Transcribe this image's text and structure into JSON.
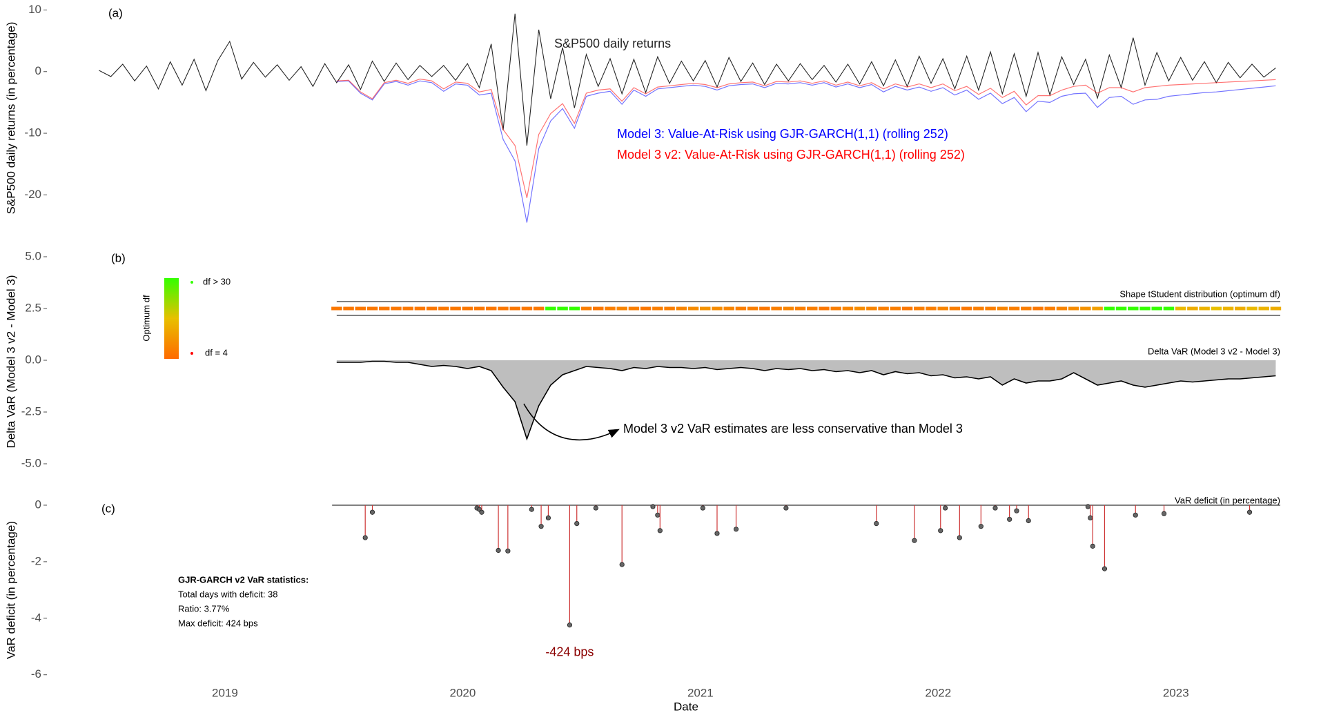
{
  "chart_data": [
    {
      "type": "line",
      "panel_label": "(a)",
      "ylabel": "S&P500 daily returns (in percentage)",
      "xlim": [
        2018.45,
        2023.5
      ],
      "ylim": [
        -25,
        10.5
      ],
      "yticks": [
        -20,
        -10,
        0,
        10
      ],
      "x": [
        2018.47,
        2018.52,
        2018.57,
        2018.62,
        2018.67,
        2018.72,
        2018.77,
        2018.82,
        2018.87,
        2018.92,
        2018.97,
        2019.02,
        2019.07,
        2019.12,
        2019.17,
        2019.22,
        2019.27,
        2019.32,
        2019.37,
        2019.42,
        2019.47,
        2019.52,
        2019.57,
        2019.62,
        2019.67,
        2019.72,
        2019.77,
        2019.82,
        2019.87,
        2019.92,
        2019.97,
        2020.02,
        2020.07,
        2020.12,
        2020.17,
        2020.22,
        2020.27,
        2020.32,
        2020.37,
        2020.42,
        2020.47,
        2020.52,
        2020.57,
        2020.62,
        2020.67,
        2020.72,
        2020.77,
        2020.82,
        2020.87,
        2020.92,
        2020.97,
        2021.02,
        2021.07,
        2021.12,
        2021.17,
        2021.22,
        2021.27,
        2021.32,
        2021.37,
        2021.42,
        2021.47,
        2021.52,
        2021.57,
        2021.62,
        2021.67,
        2021.72,
        2021.77,
        2021.82,
        2021.87,
        2021.92,
        2021.97,
        2022.02,
        2022.07,
        2022.12,
        2022.17,
        2022.22,
        2022.27,
        2022.32,
        2022.37,
        2022.42,
        2022.47,
        2022.52,
        2022.57,
        2022.62,
        2022.67,
        2022.72,
        2022.77,
        2022.82,
        2022.87,
        2022.92,
        2022.97,
        2023.02,
        2023.07,
        2023.12,
        2023.17,
        2023.22,
        2023.27,
        2023.32,
        2023.37,
        2023.42
      ],
      "series": [
        {
          "name": "S&P500 daily returns",
          "color": "#262626",
          "values": [
            0.2,
            -0.8,
            1.2,
            -1.5,
            0.9,
            -2.8,
            1.6,
            -2.2,
            2.0,
            -3.1,
            1.8,
            4.9,
            -1.2,
            1.5,
            -0.9,
            1.1,
            -1.4,
            0.8,
            -2.4,
            1.3,
            -1.8,
            1.1,
            -2.9,
            1.7,
            -1.6,
            1.4,
            -1.3,
            1.0,
            -0.8,
            1.0,
            -1.4,
            1.3,
            -2.6,
            4.5,
            -9.5,
            9.4,
            -12.0,
            6.8,
            -4.4,
            3.9,
            -5.9,
            2.8,
            -2.4,
            2.1,
            -3.6,
            2.0,
            -3.4,
            2.4,
            -1.9,
            1.7,
            -1.5,
            1.8,
            -2.5,
            2.3,
            -1.6,
            1.4,
            -2.1,
            1.2,
            -1.5,
            1.3,
            -1.3,
            1.0,
            -1.7,
            1.2,
            -2.0,
            1.6,
            -2.3,
            1.9,
            -2.4,
            2.5,
            -1.9,
            2.1,
            -2.8,
            2.5,
            -3.0,
            3.2,
            -3.6,
            2.9,
            -4.0,
            3.1,
            -3.8,
            2.4,
            -2.1,
            2.0,
            -4.3,
            2.7,
            -2.6,
            5.5,
            -2.2,
            3.1,
            -1.5,
            2.3,
            -1.4,
            1.6,
            -1.8,
            1.5,
            -1.0,
            1.2,
            -0.9,
            0.6
          ]
        },
        {
          "name": "Model 3: Value-At-Risk using GJR-GARCH(1,1) (rolling 252)",
          "color": "#0000ff",
          "values": [
            null,
            null,
            null,
            null,
            null,
            null,
            null,
            null,
            null,
            null,
            null,
            null,
            null,
            null,
            null,
            null,
            null,
            null,
            null,
            null,
            -1.6,
            -1.5,
            -3.5,
            -4.6,
            -2.0,
            -1.6,
            -2.2,
            -1.5,
            -1.8,
            -3.2,
            -2.0,
            -2.2,
            -3.8,
            -3.5,
            -11.0,
            -14.5,
            -24.5,
            -12.5,
            -8.0,
            -6.0,
            -9.2,
            -4.0,
            -3.5,
            -3.2,
            -5.3,
            -3.0,
            -4.0,
            -2.8,
            -2.6,
            -2.4,
            -2.2,
            -2.4,
            -3.0,
            -2.3,
            -2.1,
            -2.0,
            -2.6,
            -1.9,
            -2.0,
            -1.8,
            -2.2,
            -1.8,
            -2.5,
            -2.0,
            -2.6,
            -2.1,
            -3.3,
            -2.4,
            -3.0,
            -2.5,
            -3.2,
            -2.6,
            -3.8,
            -3.0,
            -4.5,
            -3.5,
            -5.2,
            -4.2,
            -6.5,
            -4.8,
            -5.0,
            -4.0,
            -3.6,
            -3.5,
            -5.8,
            -4.2,
            -4.0,
            -5.3,
            -4.6,
            -4.5,
            -4.0,
            -3.8,
            -3.6,
            -3.4,
            -3.3,
            -3.1,
            -2.9,
            -2.7,
            -2.5,
            -2.3
          ]
        },
        {
          "name": "Model 3 v2: Value-At-Risk using GJR-GARCH(1,1) (rolling 252)",
          "color": "#ff0000",
          "values": [
            null,
            null,
            null,
            null,
            null,
            null,
            null,
            null,
            null,
            null,
            null,
            null,
            null,
            null,
            null,
            null,
            null,
            null,
            null,
            null,
            -1.5,
            -1.4,
            -3.3,
            -4.4,
            -1.8,
            -1.4,
            -1.9,
            -1.2,
            -1.5,
            -2.8,
            -1.7,
            -1.9,
            -3.3,
            -2.9,
            -9.4,
            -12.0,
            -20.5,
            -10.2,
            -6.8,
            -5.2,
            -8.4,
            -3.5,
            -3.0,
            -2.8,
            -4.8,
            -2.6,
            -3.6,
            -2.5,
            -2.3,
            -2.1,
            -1.9,
            -2.1,
            -2.6,
            -2.0,
            -1.8,
            -1.7,
            -2.3,
            -1.6,
            -1.7,
            -1.5,
            -1.9,
            -1.5,
            -2.2,
            -1.7,
            -2.3,
            -1.8,
            -2.8,
            -2.0,
            -2.5,
            -2.0,
            -2.6,
            -2.0,
            -3.1,
            -2.4,
            -3.7,
            -2.7,
            -4.2,
            -3.2,
            -5.4,
            -3.9,
            -3.9,
            -3.0,
            -2.4,
            -2.2,
            -3.5,
            -2.6,
            -2.6,
            -3.3,
            -2.6,
            -2.4,
            -2.2,
            -2.1,
            -2.0,
            -1.9,
            -1.8,
            -1.7,
            -1.6,
            -1.5,
            -1.4,
            -1.3
          ]
        }
      ]
    },
    {
      "type": "area",
      "panel_label": "(b)",
      "ylabel": "Delta VaR (Model 3 v2 - Model 3)",
      "title": "Delta VaR (Model 3 v2 - Model 3)",
      "xlim": [
        2018.45,
        2023.5
      ],
      "ylim": [
        -5.5,
        5.5
      ],
      "yticks": [
        {
          "value": -5,
          "label": "-5.0"
        },
        -2.5,
        {
          "value": 0,
          "label": "0.0"
        },
        2.5,
        {
          "value": 5,
          "label": "5.0"
        }
      ],
      "color": "#bebebe",
      "line_color": "#000000",
      "annotation": "Model 3 v2 VaR estimates are less conservative than Model 3",
      "x": [
        2019.47,
        2019.52,
        2019.57,
        2019.62,
        2019.67,
        2019.72,
        2019.77,
        2019.82,
        2019.87,
        2019.92,
        2019.97,
        2020.02,
        2020.07,
        2020.12,
        2020.17,
        2020.22,
        2020.27,
        2020.32,
        2020.37,
        2020.42,
        2020.47,
        2020.52,
        2020.57,
        2020.62,
        2020.67,
        2020.72,
        2020.77,
        2020.82,
        2020.87,
        2020.92,
        2020.97,
        2021.02,
        2021.07,
        2021.12,
        2021.17,
        2021.22,
        2021.27,
        2021.32,
        2021.37,
        2021.42,
        2021.47,
        2021.52,
        2021.57,
        2021.62,
        2021.67,
        2021.72,
        2021.77,
        2021.82,
        2021.87,
        2021.92,
        2021.97,
        2022.02,
        2022.07,
        2022.12,
        2022.17,
        2022.22,
        2022.27,
        2022.32,
        2022.37,
        2022.42,
        2022.47,
        2022.52,
        2022.57,
        2022.62,
        2022.67,
        2022.72,
        2022.77,
        2022.82,
        2022.87,
        2022.92,
        2022.97,
        2023.02,
        2023.07,
        2023.12,
        2023.17,
        2023.22,
        2023.27,
        2023.32,
        2023.37,
        2023.42
      ],
      "values": [
        -0.1,
        -0.1,
        -0.1,
        -0.05,
        -0.05,
        -0.1,
        -0.1,
        -0.2,
        -0.3,
        -0.25,
        -0.3,
        -0.4,
        -0.3,
        -0.5,
        -1.3,
        -2.0,
        -3.8,
        -2.2,
        -1.2,
        -0.7,
        -0.5,
        -0.3,
        -0.35,
        -0.4,
        -0.5,
        -0.35,
        -0.4,
        -0.3,
        -0.35,
        -0.35,
        -0.4,
        -0.35,
        -0.45,
        -0.4,
        -0.35,
        -0.4,
        -0.5,
        -0.4,
        -0.45,
        -0.4,
        -0.5,
        -0.45,
        -0.55,
        -0.5,
        -0.6,
        -0.5,
        -0.7,
        -0.55,
        -0.65,
        -0.6,
        -0.75,
        -0.7,
        -0.85,
        -0.8,
        -0.9,
        -0.8,
        -1.2,
        -0.9,
        -1.1,
        -1.0,
        -1.0,
        -0.9,
        -0.6,
        -0.9,
        -1.2,
        -1.1,
        -1.0,
        -1.2,
        -1.3,
        -1.2,
        -1.1,
        -1.0,
        -1.05,
        -1.0,
        -0.95,
        -0.9,
        -0.9,
        -0.85,
        -0.8,
        -0.75
      ],
      "strip": {
        "title": "Shape tStudent distribution (optimum df)",
        "values": [
          6,
          6,
          6,
          6,
          6,
          6,
          6,
          6,
          6,
          6,
          6,
          6,
          6,
          6,
          6,
          6,
          6,
          6,
          30,
          30,
          30,
          7,
          6,
          7,
          8,
          7,
          6,
          7,
          7,
          8,
          9,
          10,
          9,
          8,
          7,
          7,
          6,
          7,
          8,
          7,
          7,
          6,
          7,
          8,
          9,
          8,
          7,
          7,
          6,
          7,
          7,
          8,
          7,
          6,
          7,
          7,
          8,
          7,
          7,
          6,
          7,
          8,
          9,
          10,
          12,
          30,
          30,
          30,
          30,
          30,
          30,
          16,
          14,
          15,
          17,
          15,
          14,
          16,
          15,
          14
        ]
      },
      "colorbar": {
        "title": "Optimum df",
        "high_label": "df > 30",
        "low_label": "df = 4",
        "lim": [
          4,
          30
        ],
        "colors": [
          "#ff6a00",
          "#e8c000",
          "#33ff00"
        ]
      }
    },
    {
      "type": "stem",
      "panel_label": "(c)",
      "ylabel": "VaR deficit (in percentage)",
      "title": "VaR deficit (in percentage)",
      "xlim": [
        2018.45,
        2023.5
      ],
      "ylim": [
        -6.3,
        0.4
      ],
      "yticks": [
        -6,
        -4,
        -2,
        0
      ],
      "xticks": [
        2019,
        2020,
        2021,
        2022,
        2023
      ],
      "xlabel": "Date",
      "color": "#cd3333",
      "max_label": "-424 bps",
      "x": [
        2019.59,
        2019.62,
        2020.06,
        2020.07,
        2020.08,
        2020.15,
        2020.19,
        2020.29,
        2020.33,
        2020.36,
        2020.45,
        2020.48,
        2020.56,
        2020.67,
        2020.8,
        2020.82,
        2020.83,
        2021.01,
        2021.07,
        2021.15,
        2021.36,
        2021.74,
        2021.9,
        2022.01,
        2022.03,
        2022.09,
        2022.18,
        2022.24,
        2022.3,
        2022.33,
        2022.38,
        2022.63,
        2022.64,
        2022.65,
        2022.7,
        2022.83,
        2022.95,
        2023.31
      ],
      "values": [
        -1.15,
        -0.25,
        -0.1,
        -0.15,
        -0.25,
        -1.6,
        -1.62,
        -0.15,
        -0.75,
        -0.45,
        -4.24,
        -0.65,
        -0.1,
        -2.1,
        -0.05,
        -0.35,
        -0.9,
        -0.1,
        -1.0,
        -0.85,
        -0.1,
        -0.65,
        -1.25,
        -0.9,
        -0.1,
        -1.15,
        -0.75,
        -0.1,
        -0.5,
        -0.2,
        -0.55,
        -0.05,
        -0.45,
        -1.45,
        -2.25,
        -0.35,
        -0.3,
        -0.25
      ],
      "stats": {
        "title": "GJR-GARCH v2 VaR statistics:",
        "lines": [
          "Total days with deficit: 38",
          "Ratio: 3.77%",
          "Max deficit: 424 bps"
        ]
      }
    }
  ]
}
